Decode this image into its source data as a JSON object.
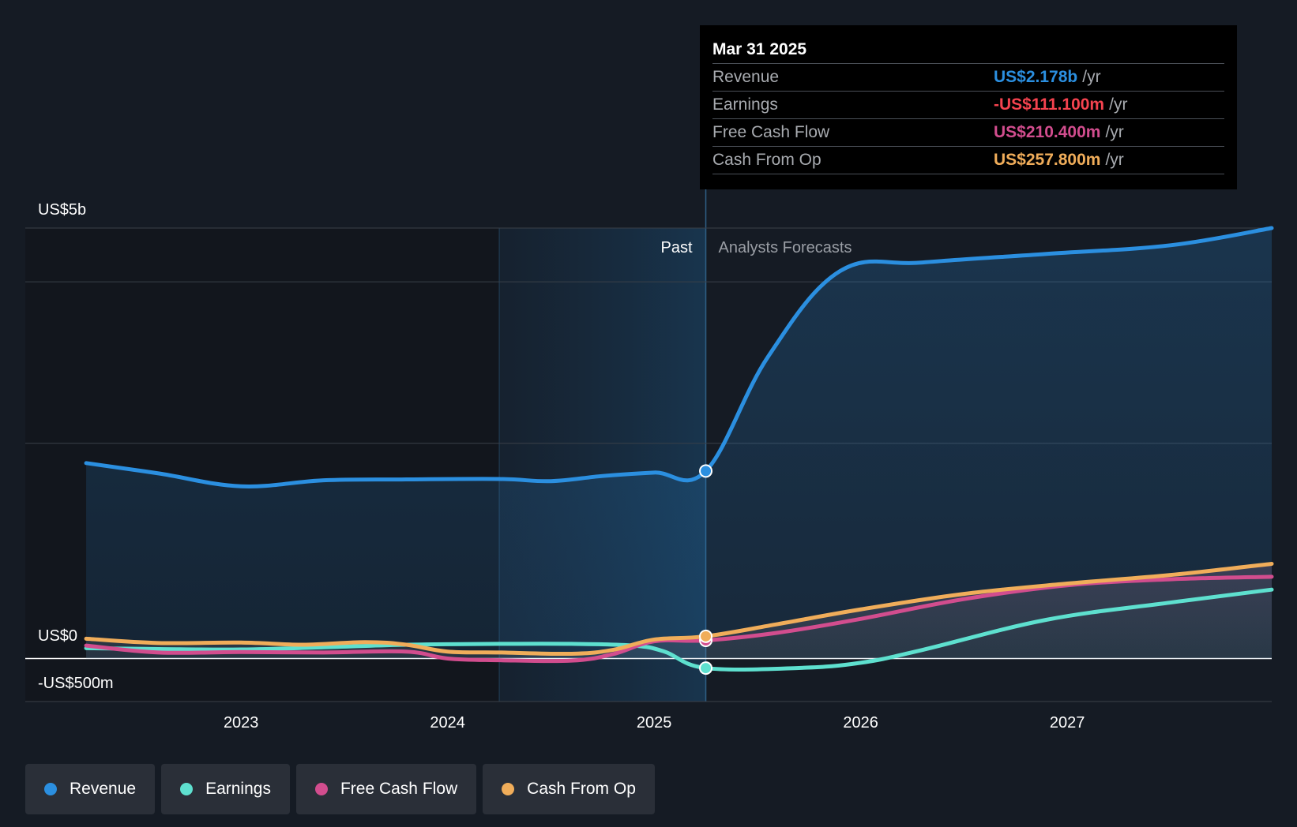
{
  "tooltip": {
    "date": "Mar 31 2025",
    "rows": [
      {
        "label": "Revenue",
        "value": "US$2.178b",
        "unit": "/yr",
        "color": "#2b8fe0"
      },
      {
        "label": "Earnings",
        "value": "-US$111.100m",
        "unit": "/yr",
        "color": "#f5434f"
      },
      {
        "label": "Free Cash Flow",
        "value": "US$210.400m",
        "unit": "/yr",
        "color": "#d24d8e"
      },
      {
        "label": "Cash From Op",
        "value": "US$257.800m",
        "unit": "/yr",
        "color": "#f0ad5a"
      }
    ]
  },
  "legend": [
    {
      "label": "Revenue",
      "color": "#2b8fe0"
    },
    {
      "label": "Earnings",
      "color": "#5ee0cf"
    },
    {
      "label": "Free Cash Flow",
      "color": "#d24d8e"
    },
    {
      "label": "Cash From Op",
      "color": "#f0ad5a"
    }
  ],
  "chart_data": {
    "type": "line",
    "x_unit": "year",
    "xlim": [
      2022.2,
      2027.99
    ],
    "ylim": [
      -500,
      5000
    ],
    "y_tick_labels": [
      {
        "value": 5000,
        "label": "US$5b"
      },
      {
        "value": 0,
        "label": "US$0"
      },
      {
        "value": -500,
        "label": "-US$500m"
      }
    ],
    "gridlines": [
      5000,
      4375,
      2500,
      -500
    ],
    "x_ticks": [
      {
        "value": 2023,
        "label": "2023"
      },
      {
        "value": 2024,
        "label": "2024"
      },
      {
        "value": 2025,
        "label": "2025"
      },
      {
        "value": 2026,
        "label": "2026"
      },
      {
        "value": 2027,
        "label": "2027"
      }
    ],
    "past_start": 2024.25,
    "forecast_start": 2025.25,
    "past_label": "Past",
    "forecast_label": "Analysts Forecasts",
    "series": [
      {
        "name": "Revenue",
        "color": "#2b8fe0",
        "fill": true,
        "marker_x": 2025.25,
        "marker_y": 2178,
        "points": [
          [
            2022.25,
            2270
          ],
          [
            2022.6,
            2150
          ],
          [
            2023.0,
            2000
          ],
          [
            2023.4,
            2070
          ],
          [
            2023.8,
            2080
          ],
          [
            2024.25,
            2085
          ],
          [
            2024.5,
            2060
          ],
          [
            2024.75,
            2120
          ],
          [
            2025.0,
            2160
          ],
          [
            2025.25,
            2178
          ],
          [
            2025.55,
            3500
          ],
          [
            2025.9,
            4500
          ],
          [
            2026.3,
            4600
          ],
          [
            2026.9,
            4700
          ],
          [
            2027.5,
            4800
          ],
          [
            2027.99,
            5000
          ]
        ]
      },
      {
        "name": "Earnings",
        "color": "#5ee0cf",
        "fill": false,
        "marker_x": 2025.25,
        "marker_y": -111.1,
        "points": [
          [
            2022.25,
            120
          ],
          [
            2022.6,
            110
          ],
          [
            2023.0,
            105
          ],
          [
            2023.4,
            130
          ],
          [
            2023.8,
            160
          ],
          [
            2024.25,
            170
          ],
          [
            2024.6,
            170
          ],
          [
            2024.9,
            150
          ],
          [
            2025.05,
            80
          ],
          [
            2025.25,
            -111.1
          ],
          [
            2025.7,
            -110
          ],
          [
            2026.0,
            -50
          ],
          [
            2026.3,
            100
          ],
          [
            2026.9,
            450
          ],
          [
            2027.5,
            650
          ],
          [
            2027.99,
            800
          ]
        ]
      },
      {
        "name": "Free Cash Flow",
        "color": "#d24d8e",
        "fill": false,
        "marker_x": 2025.25,
        "marker_y": 210.4,
        "points": [
          [
            2022.25,
            150
          ],
          [
            2022.6,
            70
          ],
          [
            2023.0,
            75
          ],
          [
            2023.4,
            70
          ],
          [
            2023.8,
            80
          ],
          [
            2024.0,
            0
          ],
          [
            2024.25,
            -20
          ],
          [
            2024.6,
            -25
          ],
          [
            2024.8,
            50
          ],
          [
            2025.0,
            200
          ],
          [
            2025.25,
            210.4
          ],
          [
            2025.6,
            300
          ],
          [
            2026.0,
            460
          ],
          [
            2026.5,
            690
          ],
          [
            2027.0,
            850
          ],
          [
            2027.5,
            920
          ],
          [
            2027.99,
            950
          ]
        ]
      },
      {
        "name": "Cash From Op",
        "color": "#f0ad5a",
        "fill": false,
        "marker_x": 2025.25,
        "marker_y": 257.8,
        "points": [
          [
            2022.25,
            230
          ],
          [
            2022.6,
            180
          ],
          [
            2023.0,
            185
          ],
          [
            2023.3,
            160
          ],
          [
            2023.6,
            190
          ],
          [
            2023.8,
            160
          ],
          [
            2024.0,
            80
          ],
          [
            2024.25,
            70
          ],
          [
            2024.6,
            55
          ],
          [
            2024.8,
            100
          ],
          [
            2025.0,
            220
          ],
          [
            2025.25,
            257.8
          ],
          [
            2025.6,
            400
          ],
          [
            2026.0,
            570
          ],
          [
            2026.5,
            750
          ],
          [
            2027.0,
            870
          ],
          [
            2027.5,
            970
          ],
          [
            2027.99,
            1100
          ]
        ]
      }
    ]
  }
}
